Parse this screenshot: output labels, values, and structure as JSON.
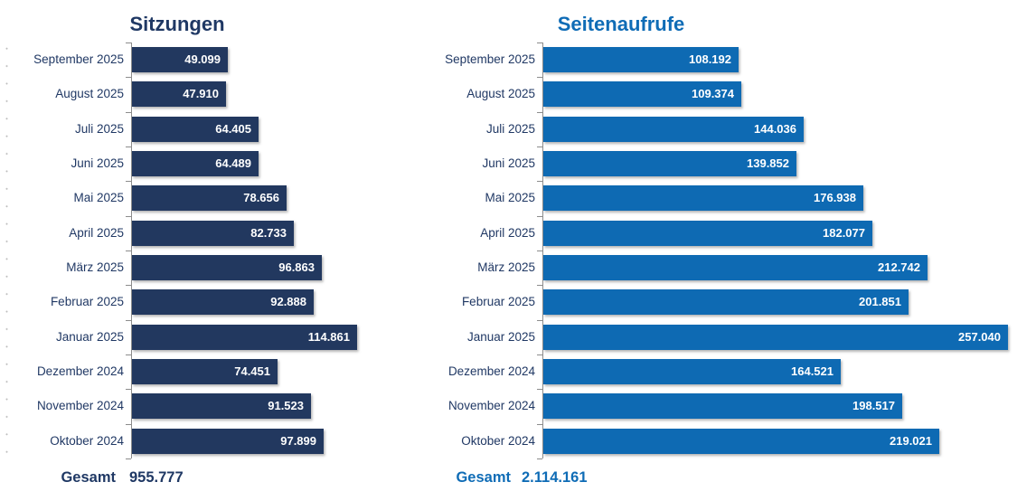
{
  "page": {
    "background": "#ffffff"
  },
  "colors": {
    "axis": "#8c8c8c",
    "category_label": "#203864",
    "value_label": "#ffffff",
    "sitzungen_accent": "#1f3864",
    "seitenaufrufe_accent": "#0f6cb6"
  },
  "chart_data": [
    {
      "type": "bar",
      "orientation": "horizontal",
      "title": "Sitzungen",
      "title_color": "#1f3864",
      "bar_color": "#22385f",
      "legend": "none",
      "grid": false,
      "xlim": [
        0,
        114861
      ],
      "categories": [
        "September 2025",
        "August 2025",
        "Juli 2025",
        "Juni 2025",
        "Mai 2025",
        "April 2025",
        "März 2025",
        "Februar 2025",
        "Januar 2025",
        "Dezember 2024",
        "November 2024",
        "Oktober 2024"
      ],
      "values": [
        49099,
        47910,
        64405,
        64489,
        78656,
        82733,
        96863,
        92888,
        114861,
        74451,
        91523,
        97899
      ],
      "value_labels": [
        "49.099",
        "47.910",
        "64.405",
        "64.489",
        "78.656",
        "82.733",
        "96.863",
        "92.888",
        "114.861",
        "74.451",
        "91.523",
        "97.899"
      ],
      "total_label": "Gesamt",
      "total_value": "955.777"
    },
    {
      "type": "bar",
      "orientation": "horizontal",
      "title": "Seitenaufrufe",
      "title_color": "#0f6cb6",
      "bar_color": "#0e6ab3",
      "legend": "none",
      "grid": false,
      "xlim": [
        0,
        257040
      ],
      "categories": [
        "September 2025",
        "August 2025",
        "Juli 2025",
        "Juni 2025",
        "Mai 2025",
        "April 2025",
        "März 2025",
        "Februar 2025",
        "Januar 2025",
        "Dezember 2024",
        "November 2024",
        "Oktober 2024"
      ],
      "values": [
        108192,
        109374,
        144036,
        139852,
        176938,
        182077,
        212742,
        201851,
        257040,
        164521,
        198517,
        219021
      ],
      "value_labels": [
        "108.192",
        "109.374",
        "144.036",
        "139.852",
        "176.938",
        "182.077",
        "212.742",
        "201.851",
        "257.040",
        "164.521",
        "198.517",
        "219.021"
      ],
      "total_label": "Gesamt",
      "total_value": "2.114.161"
    }
  ]
}
